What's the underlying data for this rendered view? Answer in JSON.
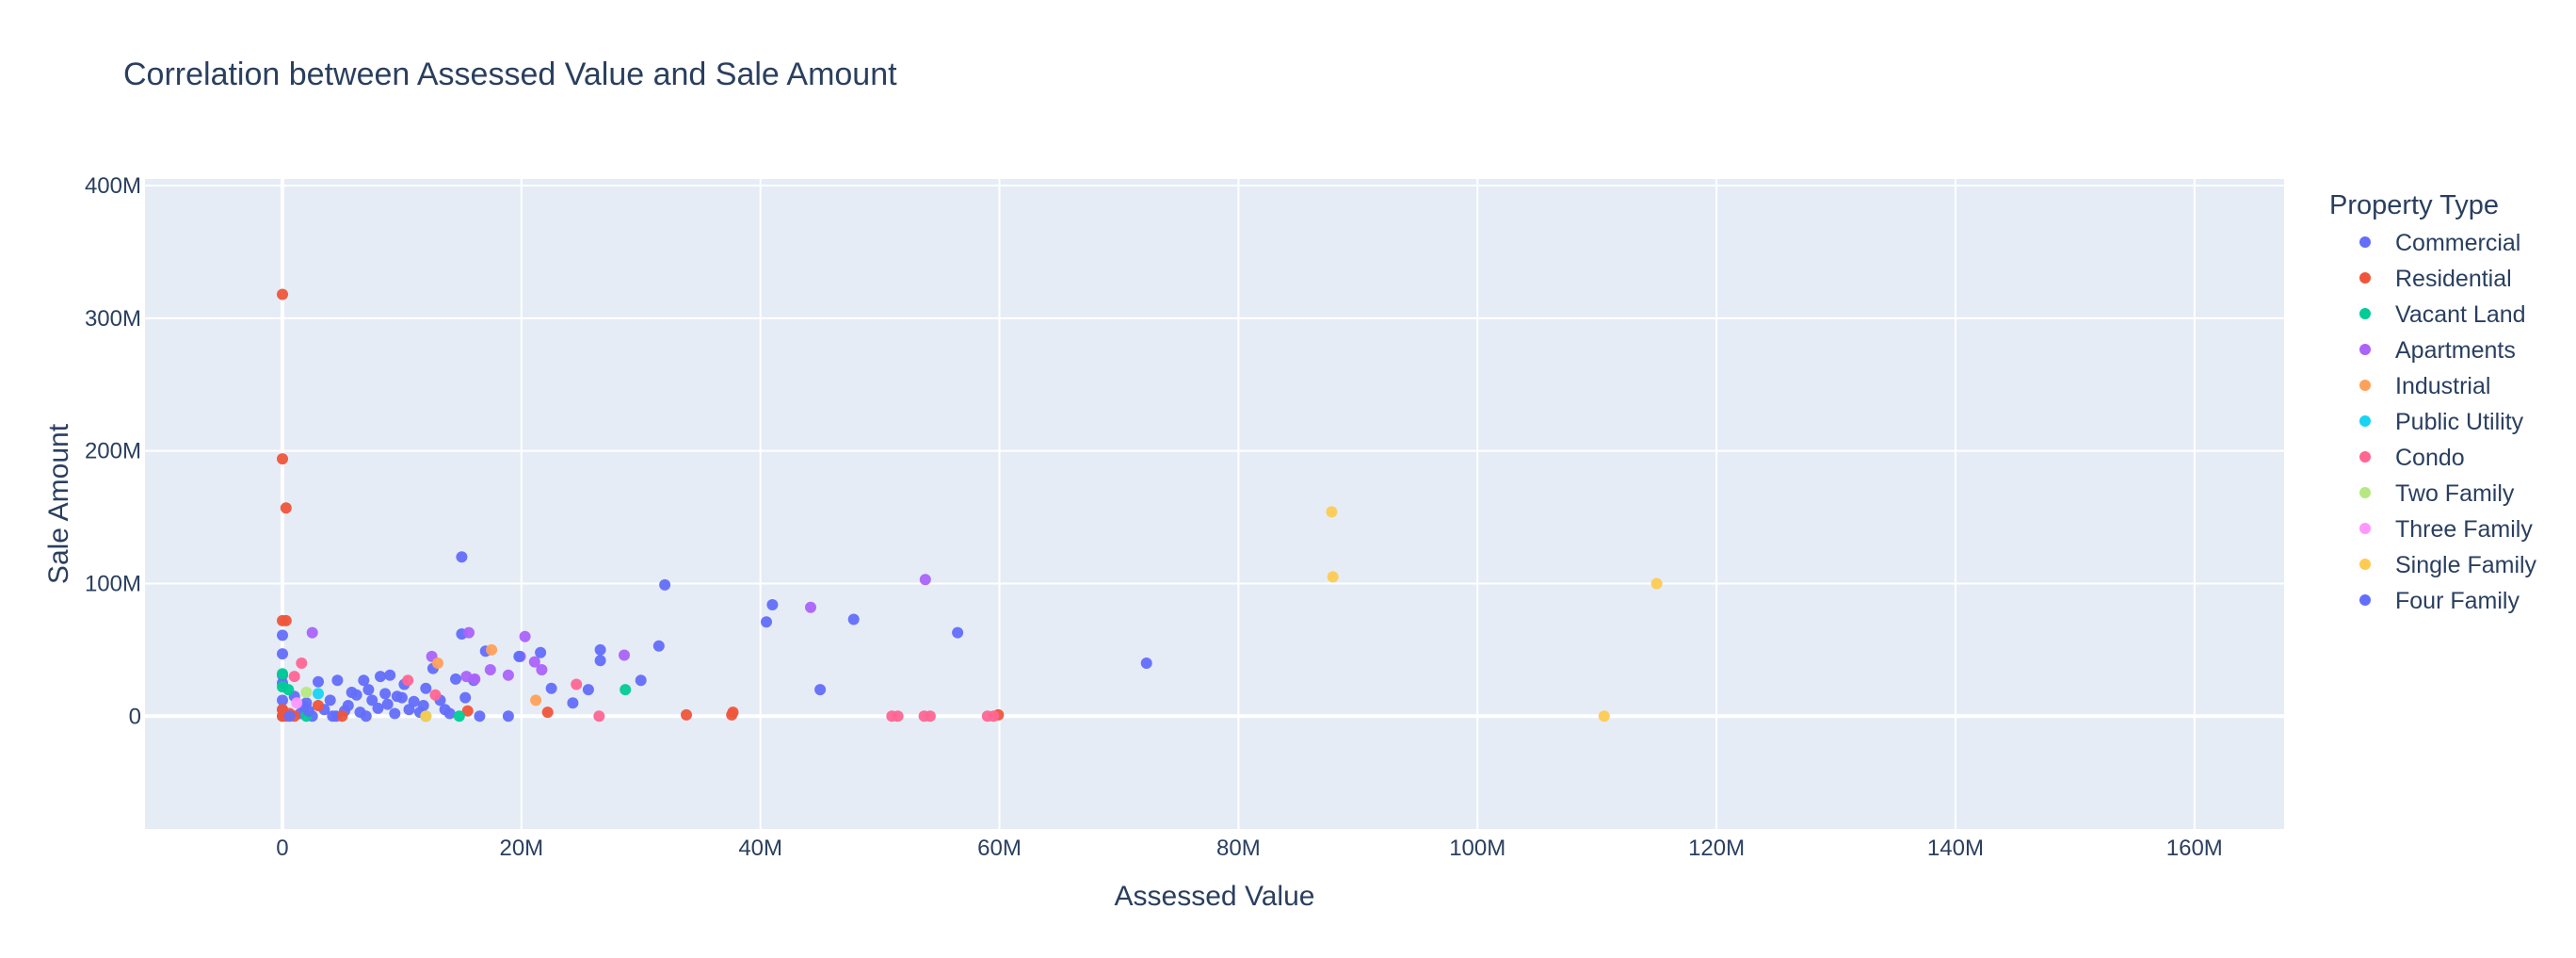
{
  "chart_data": {
    "type": "scatter",
    "title": "Correlation between Assessed Value and Sale Amount",
    "xlabel": "Assessed Value",
    "ylabel": "Sale Amount",
    "xlim": [
      -11500000,
      167500000
    ],
    "ylim": [
      -85000000,
      405000000
    ],
    "x_ticks": [
      0,
      20000000,
      40000000,
      60000000,
      80000000,
      100000000,
      120000000,
      140000000,
      160000000
    ],
    "x_tick_labels": [
      "0",
      "20M",
      "40M",
      "60M",
      "80M",
      "100M",
      "120M",
      "140M",
      "160M"
    ],
    "y_ticks": [
      0,
      100000000,
      200000000,
      300000000,
      400000000
    ],
    "y_tick_labels": [
      "0",
      "100M",
      "200M",
      "300M",
      "400M"
    ],
    "grid": true,
    "background": "#e5ecf6",
    "legend": {
      "title": "Property Type",
      "position": "right"
    },
    "series": [
      {
        "name": "Commercial",
        "color": "#636efa",
        "points": [
          [
            15000000,
            120000000
          ],
          [
            32000000,
            99000000
          ],
          [
            41000000,
            84000000
          ],
          [
            40500000,
            71000000
          ],
          [
            47800000,
            73000000
          ],
          [
            56500000,
            63000000
          ],
          [
            72300000,
            40000000
          ],
          [
            45000000,
            20000000
          ],
          [
            31500000,
            53000000
          ],
          [
            26600000,
            50000000
          ],
          [
            26600000,
            42000000
          ],
          [
            21600000,
            48000000
          ],
          [
            17000000,
            49000000
          ],
          [
            15000000,
            62000000
          ],
          [
            30000000,
            27000000
          ],
          [
            24300000,
            10000000
          ],
          [
            25600000,
            20000000
          ],
          [
            22500000,
            21000000
          ],
          [
            18900000,
            0
          ],
          [
            16500000,
            0
          ],
          [
            0,
            61000000
          ],
          [
            0,
            47000000
          ],
          [
            0,
            31000000
          ],
          [
            0,
            25000000
          ],
          [
            0,
            12000000
          ],
          [
            0,
            5000000
          ],
          [
            0,
            0
          ],
          [
            2000000,
            10000000
          ],
          [
            3000000,
            26000000
          ],
          [
            4000000,
            12000000
          ],
          [
            4600000,
            27000000
          ],
          [
            5200000,
            4000000
          ],
          [
            6200000,
            16000000
          ],
          [
            6800000,
            27000000
          ],
          [
            7500000,
            12000000
          ],
          [
            8200000,
            30000000
          ],
          [
            9000000,
            31000000
          ],
          [
            9600000,
            15000000
          ],
          [
            10200000,
            24000000
          ],
          [
            11000000,
            11000000
          ],
          [
            11500000,
            3000000
          ],
          [
            12000000,
            21000000
          ],
          [
            12600000,
            36000000
          ],
          [
            13200000,
            12000000
          ],
          [
            14500000,
            28000000
          ],
          [
            15300000,
            14000000
          ],
          [
            16000000,
            27000000
          ],
          [
            1500000,
            2000000
          ],
          [
            2500000,
            0
          ],
          [
            3500000,
            5000000
          ],
          [
            4500000,
            0
          ],
          [
            5500000,
            8000000
          ],
          [
            6500000,
            3000000
          ],
          [
            7000000,
            0
          ],
          [
            8000000,
            6000000
          ],
          [
            8800000,
            9000000
          ],
          [
            9400000,
            2000000
          ],
          [
            10600000,
            5000000
          ],
          [
            1000000,
            15000000
          ],
          [
            1800000,
            7000000
          ],
          [
            5800000,
            18000000
          ],
          [
            7200000,
            20000000
          ],
          [
            8600000,
            17000000
          ],
          [
            10000000,
            14000000
          ],
          [
            11800000,
            8000000
          ],
          [
            13600000,
            5000000
          ],
          [
            14000000,
            2000000
          ]
        ]
      },
      {
        "name": "Residential",
        "color": "#ef553b",
        "points": [
          [
            0,
            318000000
          ],
          [
            0,
            194000000
          ],
          [
            300000,
            157000000
          ],
          [
            0,
            72000000
          ],
          [
            300000,
            72000000
          ],
          [
            0,
            0
          ],
          [
            0,
            5000000
          ],
          [
            300000,
            0
          ],
          [
            600000,
            2000000
          ],
          [
            1000000,
            0
          ],
          [
            3000000,
            8000000
          ],
          [
            5000000,
            0
          ],
          [
            15500000,
            4000000
          ],
          [
            22200000,
            3000000
          ],
          [
            33800000,
            1000000
          ],
          [
            37700000,
            3000000
          ],
          [
            37600000,
            1000000
          ],
          [
            59900000,
            1000000
          ]
        ]
      },
      {
        "name": "Vacant Land",
        "color": "#00cc96",
        "points": [
          [
            0,
            32000000
          ],
          [
            0,
            22000000
          ],
          [
            500000,
            20000000
          ],
          [
            28700000,
            20000000
          ],
          [
            14800000,
            0
          ],
          [
            12000000,
            0
          ],
          [
            2000000,
            0
          ]
        ]
      },
      {
        "name": "Apartments",
        "color": "#ab63fa",
        "points": [
          [
            53800000,
            103000000
          ],
          [
            44200000,
            82000000
          ],
          [
            2500000,
            63000000
          ],
          [
            15600000,
            63000000
          ],
          [
            20300000,
            60000000
          ],
          [
            19900000,
            45000000
          ],
          [
            28600000,
            46000000
          ],
          [
            12500000,
            45000000
          ],
          [
            21100000,
            41000000
          ],
          [
            21700000,
            35000000
          ],
          [
            17400000,
            35000000
          ],
          [
            18900000,
            31000000
          ],
          [
            15400000,
            30000000
          ],
          [
            16100000,
            28000000
          ]
        ]
      },
      {
        "name": "Industrial",
        "color": "#ffa15a",
        "points": [
          [
            17500000,
            50000000
          ],
          [
            21200000,
            12000000
          ],
          [
            13000000,
            40000000
          ]
        ]
      },
      {
        "name": "Public Utility",
        "color": "#19d3f3",
        "points": [
          [
            3000000,
            17000000
          ]
        ]
      },
      {
        "name": "Condo",
        "color": "#ff6692",
        "points": [
          [
            1600000,
            40000000
          ],
          [
            24600000,
            24000000
          ],
          [
            26500000,
            0
          ],
          [
            51000000,
            0
          ],
          [
            51500000,
            0
          ],
          [
            53700000,
            0
          ],
          [
            54200000,
            0
          ],
          [
            59000000,
            0
          ],
          [
            59500000,
            0
          ],
          [
            1000000,
            30000000
          ],
          [
            10500000,
            27000000
          ],
          [
            12800000,
            16000000
          ]
        ]
      },
      {
        "name": "Two Family",
        "color": "#b6e880",
        "points": [
          [
            2000000,
            18000000
          ]
        ]
      },
      {
        "name": "Three Family",
        "color": "#ff97ff",
        "points": [
          [
            1200000,
            10000000
          ]
        ]
      },
      {
        "name": "Single Family",
        "color": "#fecb52",
        "points": [
          [
            87800000,
            154000000
          ],
          [
            87900000,
            105000000
          ],
          [
            115000000,
            100000000
          ],
          [
            110600000,
            0
          ],
          [
            12000000,
            0
          ]
        ]
      },
      {
        "name": "Four Family",
        "color": "#636efa",
        "points": [
          [
            19800000,
            45000000
          ],
          [
            600000,
            0
          ],
          [
            2200000,
            4000000
          ],
          [
            4200000,
            0
          ]
        ]
      }
    ]
  }
}
